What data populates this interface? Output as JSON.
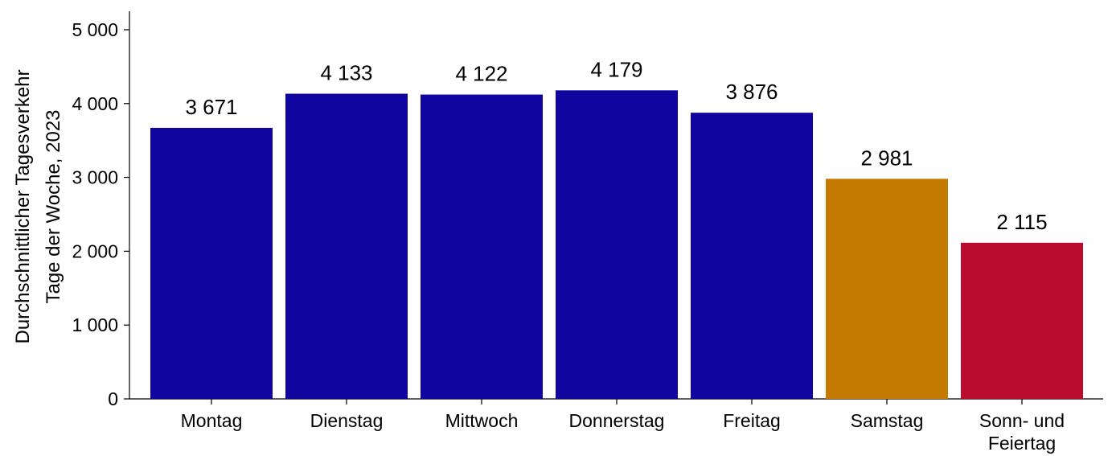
{
  "chart_data": {
    "type": "bar",
    "categories": [
      "Montag",
      "Dienstag",
      "Mittwoch",
      "Donnerstag",
      "Freitag",
      "Samstag",
      "Sonn- und Feiertag"
    ],
    "values": [
      3671,
      4133,
      4122,
      4179,
      3876,
      2981,
      2115
    ],
    "value_labels": [
      "3 671",
      "4 133",
      "4 122",
      "4 179",
      "3 876",
      "2 981",
      "2 115"
    ],
    "colors": [
      "#10069f",
      "#10069f",
      "#10069f",
      "#10069f",
      "#10069f",
      "#c47a00",
      "#ba0c2f"
    ],
    "title": "",
    "xlabel": "",
    "ylabel_lines": [
      "Durchschnittlicher Tagesverkehr",
      "Tage der Woche, 2023"
    ],
    "ylim": [
      0,
      5250
    ],
    "yticks": [
      0,
      1000,
      2000,
      3000,
      4000,
      5000
    ],
    "ytick_labels": [
      "0",
      "1 000",
      "2 000",
      "3 000",
      "4 000",
      "5 000"
    ],
    "grid": false,
    "legend": "none"
  }
}
